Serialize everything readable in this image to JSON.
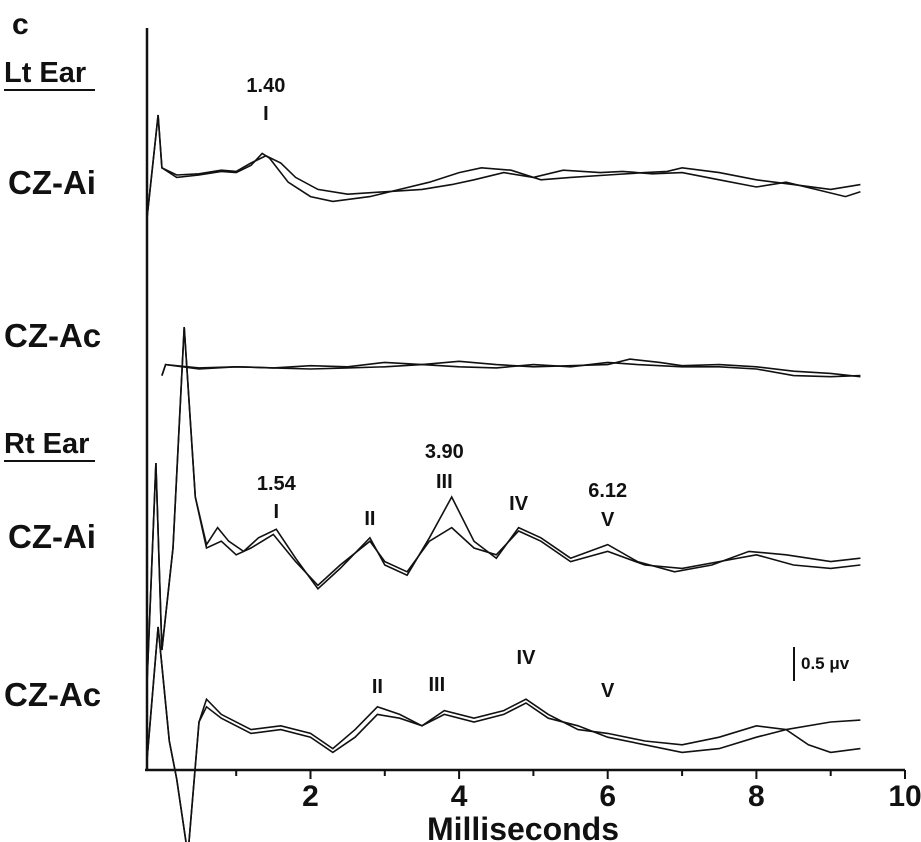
{
  "panel_label": "c",
  "ear_labels": [
    "Lt Ear",
    "Rt Ear"
  ],
  "scale_bar_label": "0.5 μv",
  "chart_data": {
    "type": "line",
    "title": "",
    "xlabel": "Milliseconds",
    "ylabel": "",
    "xlim": [
      -0.2,
      10
    ],
    "x_ticks": [
      2,
      4,
      6,
      8,
      10
    ],
    "grid": false,
    "traces": [
      {
        "id": "lt-cz-ai",
        "ear": "Lt Ear",
        "name": "CZ-Ai",
        "baseline": 0,
        "series": [
          {
            "name": "",
            "points": [
              [
                -0.2,
                -1.8
              ],
              [
                -0.05,
                2.5
              ],
              [
                0,
                0.3
              ],
              [
                0.2,
                -0.1
              ],
              [
                0.5,
                0
              ],
              [
                0.8,
                0.15
              ],
              [
                1.0,
                0.1
              ],
              [
                1.2,
                0.4
              ],
              [
                1.35,
                0.9
              ],
              [
                1.45,
                0.7
              ],
              [
                1.7,
                -0.3
              ],
              [
                2.0,
                -0.9
              ],
              [
                2.3,
                -1.1
              ],
              [
                2.8,
                -0.9
              ],
              [
                3.2,
                -0.6
              ],
              [
                3.6,
                -0.3
              ],
              [
                4.0,
                0.1
              ],
              [
                4.3,
                0.3
              ],
              [
                4.7,
                0.2
              ],
              [
                5.1,
                -0.2
              ],
              [
                5.5,
                -0.1
              ],
              [
                6.0,
                0
              ],
              [
                6.5,
                0.1
              ],
              [
                6.8,
                0.15
              ],
              [
                7.0,
                0.3
              ],
              [
                7.5,
                0.1
              ],
              [
                8.0,
                -0.2
              ],
              [
                8.5,
                -0.4
              ],
              [
                9.0,
                -0.6
              ],
              [
                9.4,
                -0.4
              ]
            ]
          },
          {
            "name": "",
            "points": [
              [
                -0.2,
                -1.8
              ],
              [
                -0.05,
                2.5
              ],
              [
                0,
                0.3
              ],
              [
                0.2,
                0
              ],
              [
                0.5,
                0.05
              ],
              [
                0.8,
                0.2
              ],
              [
                1.0,
                0.15
              ],
              [
                1.2,
                0.5
              ],
              [
                1.4,
                0.8
              ],
              [
                1.6,
                0.5
              ],
              [
                1.8,
                -0.1
              ],
              [
                2.1,
                -0.6
              ],
              [
                2.5,
                -0.8
              ],
              [
                3.0,
                -0.7
              ],
              [
                3.5,
                -0.6
              ],
              [
                3.9,
                -0.4
              ],
              [
                4.2,
                -0.2
              ],
              [
                4.6,
                0.1
              ],
              [
                5.0,
                -0.1
              ],
              [
                5.4,
                0.2
              ],
              [
                5.9,
                0.1
              ],
              [
                6.2,
                0.15
              ],
              [
                6.6,
                0.05
              ],
              [
                7.0,
                0.1
              ],
              [
                7.5,
                -0.2
              ],
              [
                8.0,
                -0.5
              ],
              [
                8.4,
                -0.3
              ],
              [
                8.8,
                -0.6
              ],
              [
                9.2,
                -0.9
              ],
              [
                9.4,
                -0.7
              ]
            ]
          }
        ]
      },
      {
        "id": "lt-cz-ac",
        "ear": "Lt Ear",
        "name": "CZ-Ac",
        "baseline": 0,
        "series": [
          {
            "name": "",
            "points": [
              [
                0,
                -0.3
              ],
              [
                0.05,
                0.2
              ],
              [
                0.5,
                0.05
              ],
              [
                1.0,
                0.1
              ],
              [
                1.5,
                0.05
              ],
              [
                2.0,
                0.15
              ],
              [
                2.5,
                0.1
              ],
              [
                3.0,
                0.3
              ],
              [
                3.5,
                0.2
              ],
              [
                4.0,
                0.35
              ],
              [
                4.5,
                0.2
              ],
              [
                5.0,
                0.1
              ],
              [
                5.5,
                0.15
              ],
              [
                6.0,
                0.2
              ],
              [
                6.3,
                0.45
              ],
              [
                6.7,
                0.3
              ],
              [
                7.0,
                0.15
              ],
              [
                7.5,
                0.2
              ],
              [
                8.0,
                0.1
              ],
              [
                8.5,
                -0.1
              ],
              [
                9.0,
                -0.2
              ],
              [
                9.4,
                -0.35
              ]
            ]
          },
          {
            "name": "",
            "points": [
              [
                0,
                -0.3
              ],
              [
                0.05,
                0.2
              ],
              [
                0.5,
                0
              ],
              [
                1.0,
                0.1
              ],
              [
                1.5,
                0.05
              ],
              [
                2.0,
                0
              ],
              [
                2.5,
                0.05
              ],
              [
                3.0,
                0.1
              ],
              [
                3.5,
                0.2
              ],
              [
                4.0,
                0.1
              ],
              [
                4.5,
                0.05
              ],
              [
                5.0,
                0.2
              ],
              [
                5.5,
                0.1
              ],
              [
                6.0,
                0.3
              ],
              [
                6.4,
                0.2
              ],
              [
                7.0,
                0.1
              ],
              [
                7.5,
                0.1
              ],
              [
                8.0,
                0
              ],
              [
                8.5,
                -0.3
              ],
              [
                9.0,
                -0.35
              ],
              [
                9.4,
                -0.3
              ]
            ]
          }
        ]
      },
      {
        "id": "rt-cz-ai",
        "ear": "Rt Ear",
        "name": "CZ-Ai",
        "baseline": 0,
        "series": [
          {
            "name": "",
            "points": [
              [
                -0.2,
                -4
              ],
              [
                -0.08,
                2.5
              ],
              [
                0,
                -3
              ],
              [
                0.15,
                0
              ],
              [
                0.3,
                6.5
              ],
              [
                0.45,
                1.5
              ],
              [
                0.6,
                0.1
              ],
              [
                0.75,
                0.6
              ],
              [
                0.9,
                0.2
              ],
              [
                1.1,
                -0.1
              ],
              [
                1.3,
                0.3
              ],
              [
                1.54,
                0.55
              ],
              [
                1.8,
                -0.3
              ],
              [
                2.1,
                -1.2
              ],
              [
                2.4,
                -0.6
              ],
              [
                2.8,
                0.3
              ],
              [
                3.0,
                -0.5
              ],
              [
                3.3,
                -0.8
              ],
              [
                3.6,
                0.3
              ],
              [
                3.9,
                1.5
              ],
              [
                4.2,
                0.2
              ],
              [
                4.5,
                -0.3
              ],
              [
                4.8,
                0.6
              ],
              [
                5.1,
                0.3
              ],
              [
                5.5,
                -0.3
              ],
              [
                6.0,
                0.1
              ],
              [
                6.4,
                -0.4
              ],
              [
                6.9,
                -0.7
              ],
              [
                7.4,
                -0.5
              ],
              [
                7.9,
                -0.1
              ],
              [
                8.4,
                -0.2
              ],
              [
                9.0,
                -0.4
              ],
              [
                9.4,
                -0.3
              ]
            ]
          },
          {
            "name": "",
            "points": [
              [
                -0.2,
                -4
              ],
              [
                -0.08,
                2.5
              ],
              [
                0,
                -3
              ],
              [
                0.15,
                0
              ],
              [
                0.3,
                6.5
              ],
              [
                0.45,
                1.5
              ],
              [
                0.6,
                0
              ],
              [
                0.8,
                0.2
              ],
              [
                1.0,
                -0.2
              ],
              [
                1.2,
                0
              ],
              [
                1.5,
                0.4
              ],
              [
                1.8,
                -0.4
              ],
              [
                2.1,
                -1.1
              ],
              [
                2.4,
                -0.5
              ],
              [
                2.8,
                0.2
              ],
              [
                3.0,
                -0.4
              ],
              [
                3.3,
                -0.7
              ],
              [
                3.6,
                0.2
              ],
              [
                3.9,
                0.6
              ],
              [
                4.2,
                0
              ],
              [
                4.5,
                -0.2
              ],
              [
                4.8,
                0.5
              ],
              [
                5.1,
                0.2
              ],
              [
                5.5,
                -0.4
              ],
              [
                6.0,
                -0.1
              ],
              [
                6.5,
                -0.5
              ],
              [
                7.0,
                -0.6
              ],
              [
                7.5,
                -0.4
              ],
              [
                8.0,
                -0.2
              ],
              [
                8.5,
                -0.5
              ],
              [
                9.0,
                -0.6
              ],
              [
                9.4,
                -0.5
              ]
            ]
          }
        ]
      },
      {
        "id": "rt-cz-ac",
        "ear": "Rt Ear",
        "name": "CZ-Ac",
        "baseline": 0,
        "series": [
          {
            "name": "",
            "points": [
              [
                -0.2,
                -1
              ],
              [
                -0.05,
                2.5
              ],
              [
                0.1,
                -0.5
              ],
              [
                0.2,
                -1.5
              ],
              [
                0.35,
                -3.5
              ],
              [
                0.5,
                0
              ],
              [
                0.6,
                0.6
              ],
              [
                0.8,
                0.2
              ],
              [
                1.2,
                -0.2
              ],
              [
                1.6,
                -0.1
              ],
              [
                2.0,
                -0.3
              ],
              [
                2.3,
                -0.7
              ],
              [
                2.6,
                -0.2
              ],
              [
                2.9,
                0.4
              ],
              [
                3.2,
                0.2
              ],
              [
                3.5,
                -0.1
              ],
              [
                3.8,
                0.3
              ],
              [
                4.2,
                0.1
              ],
              [
                4.6,
                0.3
              ],
              [
                4.9,
                0.6
              ],
              [
                5.2,
                0.2
              ],
              [
                5.6,
                -0.2
              ],
              [
                6.0,
                -0.3
              ],
              [
                6.5,
                -0.5
              ],
              [
                7.0,
                -0.6
              ],
              [
                7.5,
                -0.4
              ],
              [
                8.0,
                -0.1
              ],
              [
                8.4,
                -0.2
              ],
              [
                9.0,
                0
              ],
              [
                9.4,
                0.05
              ]
            ]
          },
          {
            "name": "",
            "points": [
              [
                -0.2,
                -1
              ],
              [
                -0.05,
                2.5
              ],
              [
                0.1,
                -0.5
              ],
              [
                0.2,
                -1.5
              ],
              [
                0.35,
                -3.5
              ],
              [
                0.5,
                0
              ],
              [
                0.6,
                0.4
              ],
              [
                0.8,
                0.1
              ],
              [
                1.2,
                -0.3
              ],
              [
                1.6,
                -0.2
              ],
              [
                2.0,
                -0.4
              ],
              [
                2.3,
                -0.8
              ],
              [
                2.6,
                -0.4
              ],
              [
                2.9,
                0.2
              ],
              [
                3.2,
                0.1
              ],
              [
                3.5,
                -0.1
              ],
              [
                3.8,
                0.2
              ],
              [
                4.2,
                0
              ],
              [
                4.6,
                0.2
              ],
              [
                4.9,
                0.5
              ],
              [
                5.2,
                0.1
              ],
              [
                5.6,
                -0.1
              ],
              [
                6.0,
                -0.4
              ],
              [
                6.5,
                -0.6
              ],
              [
                7.0,
                -0.8
              ],
              [
                7.5,
                -0.7
              ],
              [
                8.0,
                -0.4
              ],
              [
                8.4,
                -0.2
              ],
              [
                8.7,
                -0.6
              ],
              [
                9.0,
                -0.8
              ],
              [
                9.4,
                -0.7
              ]
            ]
          }
        ]
      }
    ],
    "annotations": [
      {
        "trace": "lt-cz-ai",
        "wave": "I",
        "latency": "1.40",
        "x": 1.4
      },
      {
        "trace": "rt-cz-ai",
        "wave": "I",
        "latency": "1.54",
        "x": 1.54
      },
      {
        "trace": "rt-cz-ai",
        "wave": "II",
        "latency": "",
        "x": 2.8
      },
      {
        "trace": "rt-cz-ai",
        "wave": "III",
        "latency": "3.90",
        "x": 3.8
      },
      {
        "trace": "rt-cz-ai",
        "wave": "IV",
        "latency": "",
        "x": 4.8
      },
      {
        "trace": "rt-cz-ai",
        "wave": "V",
        "latency": "6.12",
        "x": 6.0
      },
      {
        "trace": "rt-cz-ac",
        "wave": "II",
        "latency": "",
        "x": 2.9
      },
      {
        "trace": "rt-cz-ac",
        "wave": "III",
        "latency": "",
        "x": 3.7
      },
      {
        "trace": "rt-cz-ac",
        "wave": "IV",
        "latency": "",
        "x": 4.9
      },
      {
        "trace": "rt-cz-ac",
        "wave": "V",
        "latency": "",
        "x": 6.0
      }
    ]
  }
}
